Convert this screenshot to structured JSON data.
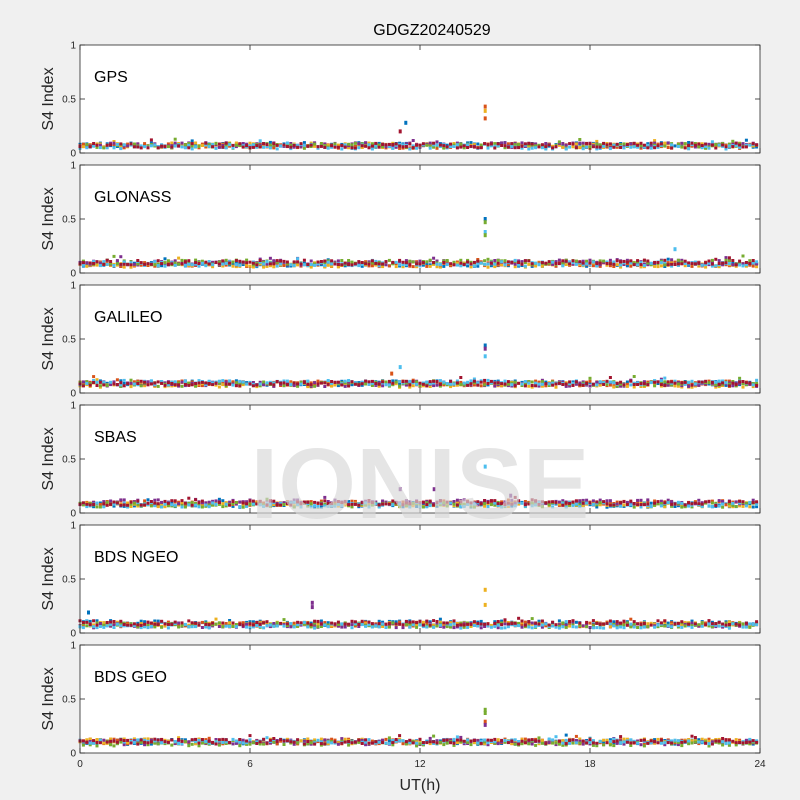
{
  "chart_data": {
    "type": "scatter",
    "title": "GDGZ20240529",
    "xlabel": "UT(h)",
    "ylabel": "S4 Index",
    "xlim": [
      0,
      24
    ],
    "ylim": [
      0,
      1
    ],
    "xticks": [
      "0",
      "6",
      "12",
      "18",
      "24"
    ],
    "yticks": [
      "0",
      "0.5",
      "1"
    ],
    "watermark": "IONISE",
    "colors": [
      "#0072BD",
      "#D95319",
      "#EDB120",
      "#7E2F8E",
      "#77AC30",
      "#4DBEEE",
      "#A2142F"
    ],
    "panels": [
      {
        "label": "GPS",
        "baseline": 0.07,
        "spikes": [
          {
            "x": 11.5,
            "y": 0.28,
            "color": "#0072BD"
          },
          {
            "x": 11.3,
            "y": 0.2,
            "color": "#A2142F"
          },
          {
            "x": 14.3,
            "y": 0.43,
            "color": "#D95319"
          },
          {
            "x": 14.3,
            "y": 0.39,
            "color": "#EDB120"
          },
          {
            "x": 14.3,
            "y": 0.32,
            "color": "#D95319"
          }
        ]
      },
      {
        "label": "GLONASS",
        "baseline": 0.09,
        "spikes": [
          {
            "x": 14.3,
            "y": 0.5,
            "color": "#0072BD"
          },
          {
            "x": 14.3,
            "y": 0.47,
            "color": "#77AC30"
          },
          {
            "x": 14.3,
            "y": 0.38,
            "color": "#4DBEEE"
          },
          {
            "x": 14.3,
            "y": 0.35,
            "color": "#77AC30"
          },
          {
            "x": 21.0,
            "y": 0.22,
            "color": "#4DBEEE"
          }
        ]
      },
      {
        "label": "GALILEO",
        "baseline": 0.09,
        "spikes": [
          {
            "x": 14.3,
            "y": 0.44,
            "color": "#0072BD"
          },
          {
            "x": 14.3,
            "y": 0.41,
            "color": "#7E2F8E"
          },
          {
            "x": 14.3,
            "y": 0.34,
            "color": "#4DBEEE"
          },
          {
            "x": 11.3,
            "y": 0.24,
            "color": "#4DBEEE"
          },
          {
            "x": 11.0,
            "y": 0.18,
            "color": "#D95319"
          }
        ]
      },
      {
        "label": "SBAS",
        "baseline": 0.09,
        "spikes": [
          {
            "x": 14.3,
            "y": 0.43,
            "color": "#4DBEEE"
          },
          {
            "x": 11.3,
            "y": 0.22,
            "color": "#7E2F8E"
          },
          {
            "x": 12.5,
            "y": 0.22,
            "color": "#7E2F8E"
          },
          {
            "x": 15.2,
            "y": 0.16,
            "color": "#7E2F8E"
          }
        ]
      },
      {
        "label": "BDS NGEO",
        "baseline": 0.08,
        "spikes": [
          {
            "x": 0.3,
            "y": 0.19,
            "color": "#0072BD"
          },
          {
            "x": 8.2,
            "y": 0.28,
            "color": "#7E2F8E"
          },
          {
            "x": 8.2,
            "y": 0.24,
            "color": "#7E2F8E"
          },
          {
            "x": 14.3,
            "y": 0.4,
            "color": "#EDB120"
          },
          {
            "x": 14.3,
            "y": 0.26,
            "color": "#EDB120"
          }
        ]
      },
      {
        "label": "BDS GEO",
        "baseline": 0.1,
        "spikes": [
          {
            "x": 14.3,
            "y": 0.4,
            "color": "#77AC30"
          },
          {
            "x": 14.3,
            "y": 0.37,
            "color": "#77AC30"
          },
          {
            "x": 14.3,
            "y": 0.29,
            "color": "#D95319"
          },
          {
            "x": 14.3,
            "y": 0.26,
            "color": "#7E2F8E"
          }
        ]
      }
    ]
  }
}
